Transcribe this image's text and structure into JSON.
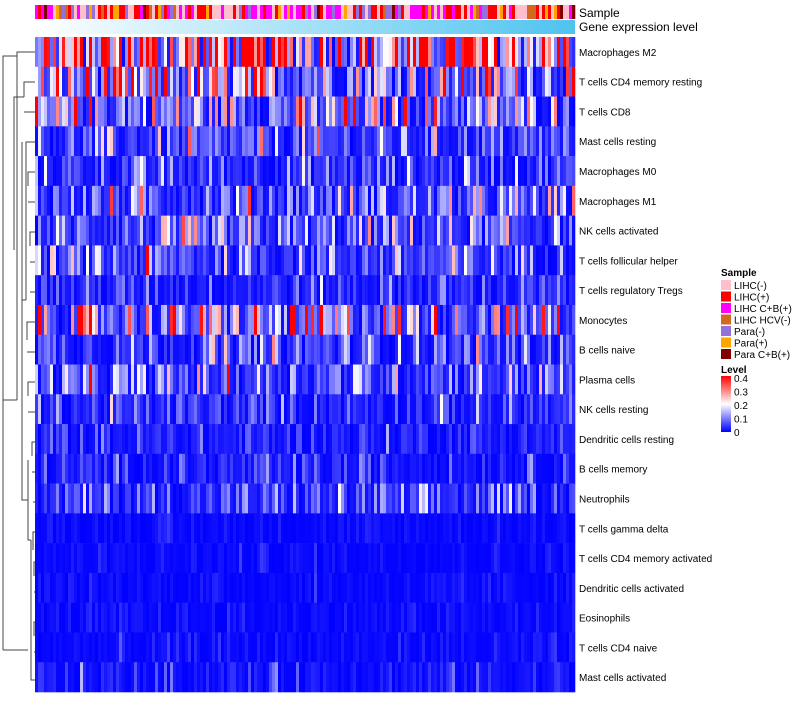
{
  "chart_data": {
    "type": "heatmap",
    "title": "",
    "annotations": {
      "sample_label": "Sample",
      "gene_label": "Gene expression level"
    },
    "rows": [
      "Macrophages M2",
      "T cells CD4 memory resting",
      "T cells CD8",
      "Mast cells resting",
      "Macrophages M0",
      "Macrophages M1",
      "NK cells activated",
      "T cells follicular helper",
      "T cells regulatory  Tregs",
      "Monocytes",
      "B cells naive",
      "Plasma cells",
      "NK cells resting",
      "Dendritic cells resting",
      "B cells memory",
      "Neutrophils",
      "T cells gamma delta",
      "T cells CD4 memory activated",
      "Dendritic cells activated",
      "Eosinophils",
      "T cells CD4 naive",
      "Mast cells activated"
    ],
    "row_mean_level": [
      0.3,
      0.15,
      0.12,
      0.06,
      0.05,
      0.08,
      0.07,
      0.07,
      0.04,
      0.14,
      0.06,
      0.08,
      0.04,
      0.03,
      0.03,
      0.05,
      0.01,
      0.01,
      0.01,
      0.01,
      0.01,
      0.02
    ],
    "n_columns": 180,
    "legend_sample": {
      "title": "Sample",
      "entries": [
        {
          "label": "LIHC(-)",
          "color": "#ffc0cb"
        },
        {
          "label": "LIHC(+)",
          "color": "#ff0000"
        },
        {
          "label": "LIHC C+B(+)",
          "color": "#ff00ff"
        },
        {
          "label": "LIHC HCV(-)",
          "color": "#d2691e"
        },
        {
          "label": "Para(-)",
          "color": "#9370db"
        },
        {
          "label": "Para(+)",
          "color": "#ffa500"
        },
        {
          "label": "Para C+B(+)",
          "color": "#800000"
        }
      ]
    },
    "legend_level": {
      "title": "Level",
      "ticks": [
        "0.4",
        "0.3",
        "0.2",
        "0.1",
        "0"
      ],
      "range": [
        0,
        0.4
      ],
      "colors": {
        "low": "#0000ff",
        "mid": "#ffffff",
        "high": "#ff0000"
      }
    },
    "gene_gradient": {
      "low": "#ffffff",
      "high": "#4fc3f0"
    }
  }
}
